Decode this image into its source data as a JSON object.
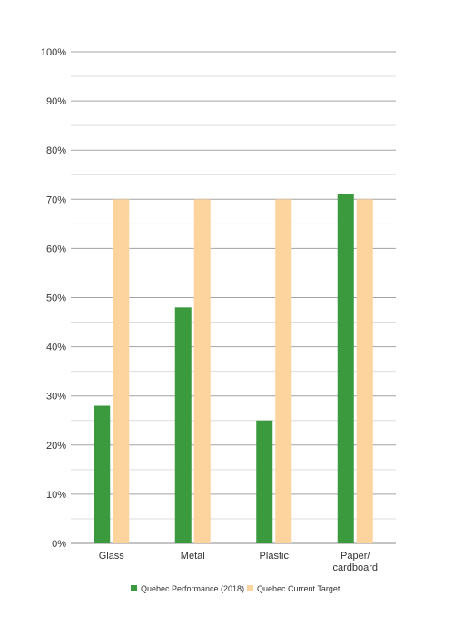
{
  "chart_data": {
    "type": "bar",
    "title": "",
    "xlabel": "",
    "ylabel": "",
    "categories": [
      [
        "Glass"
      ],
      [
        "Metal"
      ],
      [
        "Plastic"
      ],
      [
        "Paper/",
        "cardboard"
      ]
    ],
    "series": [
      {
        "name": "Quebec Performance (2018)",
        "values": [
          28,
          48,
          25,
          71
        ]
      },
      {
        "name": "Quebec Current Target",
        "values": [
          70,
          70,
          70,
          70
        ]
      }
    ],
    "ylim": [
      0,
      100
    ],
    "major_ticks": [
      0,
      10,
      20,
      30,
      40,
      50,
      60,
      70,
      80,
      90,
      100
    ],
    "tick_suffix": "%",
    "grid": true,
    "legend_position": "bottom-center",
    "colors": {
      "series": [
        "#3b9a3e",
        "#fdd49d"
      ],
      "grid_major": "#a3a3a3",
      "grid_minor": "#dedede",
      "axis": "#888888"
    }
  }
}
